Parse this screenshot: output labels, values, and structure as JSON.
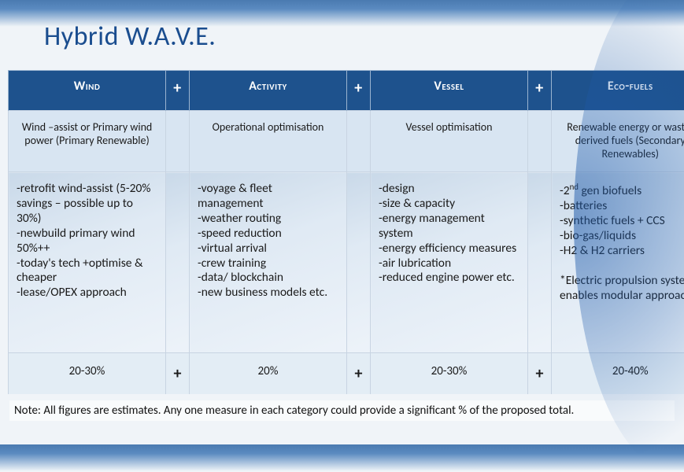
{
  "title": "Hybrid W.A.V.E.",
  "plus": "+",
  "columns": [
    {
      "header": "Wind",
      "subhead": "Wind –assist or Primary wind power (Primary Renewable)",
      "body": "-retrofit wind-assist (5-20% savings – possible up to 30%)\n-newbuild primary wind 50%++\n-today's tech +optimise & cheaper\n-lease/OPEX approach",
      "pct": "20-30%"
    },
    {
      "header": "Activity",
      "subhead": "Operational optimisation",
      "body": "-voyage & fleet management\n-weather routing\n-speed reduction\n-virtual arrival\n-crew training\n-data/ blockchain\n-new business models etc.",
      "pct": "20%"
    },
    {
      "header": "Vessel",
      "subhead": "Vessel optimisation",
      "body": "-design\n-size & capacity\n-energy management system\n-energy efficiency measures\n-air lubrication\n-reduced engine power etc.",
      "pct": "20-30%"
    },
    {
      "header": "Eco-fuels",
      "subhead": "Renewable energy or waste-derived fuels (Secondary Renewables)",
      "body": "",
      "pct": "20-40%"
    }
  ],
  "ecofuels_body_html": "-2<sup>nd</sup> gen biofuels<br>-batteries<br>-synthetic fuels + CCS<br>-bio-gas/liquids<br>-H2 &amp; H2 carriers<br><br>*Electric propulsion systems enables modular approach",
  "note": "Note: All figures are estimates. Any one measure in each category could provide a significant % of the proposed total.",
  "colors": {
    "header_bg": "#1e528d",
    "title_color": "#1a4d8f",
    "border": "#c8d4e2"
  }
}
